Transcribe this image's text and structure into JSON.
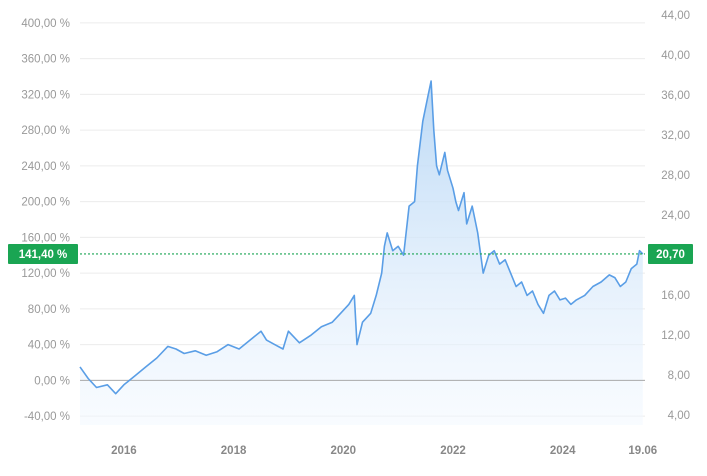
{
  "chart_data": {
    "type": "area",
    "title": "",
    "xlabel": "",
    "ylabel": "",
    "x_tick_labels": [
      "2016",
      "2018",
      "2020",
      "2022",
      "2024",
      "19.06"
    ],
    "x_tick_years": [
      2016,
      2018,
      2020,
      2022,
      2024,
      2025.46
    ],
    "xlim": [
      2015.2,
      2025.5
    ],
    "y_left": {
      "unit": "%",
      "ylim": [
        -50,
        420
      ],
      "ticks": [
        -40,
        0,
        40,
        80,
        120,
        160,
        200,
        240,
        280,
        320,
        360,
        400
      ],
      "tick_labels": [
        "-40,00 %",
        "0,00 %",
        "40,00 %",
        "80,00 %",
        "120,00 %",
        "160,00 %",
        "200,00 %",
        "240,00 %",
        "280,00 %",
        "320,00 %",
        "360,00 %",
        "400,00 %"
      ]
    },
    "y_right": {
      "ylim": [
        3.0,
        45.0
      ],
      "ticks": [
        4,
        8,
        12,
        16,
        20,
        24,
        28,
        32,
        36,
        40,
        44
      ],
      "tick_labels": [
        "4,00",
        "8,00",
        "12,00",
        "16,00",
        "20,00",
        "24,00",
        "28,00",
        "32,00",
        "36,00",
        "40,00",
        "44,00"
      ]
    },
    "baseline_value": 0,
    "current": {
      "percent": 141.4,
      "percent_label": "141,40 %",
      "price": 20.7,
      "price_label": "20,70"
    },
    "series": [
      {
        "x": [
          2015.2,
          2015.35,
          2015.5,
          2015.7,
          2015.85,
          2016.0,
          2016.2,
          2016.4,
          2016.6,
          2016.8,
          2016.95,
          2017.1,
          2017.3,
          2017.5,
          2017.7,
          2017.9,
          2018.1,
          2018.3,
          2018.5,
          2018.6,
          2018.75,
          2018.9,
          2019.0,
          2019.2,
          2019.4,
          2019.6,
          2019.8,
          2019.95,
          2020.1,
          2020.2,
          2020.25,
          2020.35,
          2020.5,
          2020.6,
          2020.7,
          2020.75,
          2020.8,
          2020.9,
          2021.0,
          2021.1,
          2021.2,
          2021.3,
          2021.35,
          2021.45,
          2021.55,
          2021.6,
          2021.65,
          2021.7,
          2021.75,
          2021.85,
          2021.9,
          2022.0,
          2022.05,
          2022.1,
          2022.2,
          2022.25,
          2022.35,
          2022.45,
          2022.55,
          2022.65,
          2022.75,
          2022.85,
          2022.95,
          2023.05,
          2023.15,
          2023.25,
          2023.35,
          2023.45,
          2023.55,
          2023.65,
          2023.75,
          2023.85,
          2023.95,
          2024.05,
          2024.15,
          2024.25,
          2024.4,
          2024.55,
          2024.7,
          2024.85,
          2024.95,
          2025.05,
          2025.15,
          2025.25,
          2025.35,
          2025.4,
          2025.46
        ],
        "values": [
          15,
          2,
          -8,
          -5,
          -15,
          -5,
          5,
          15,
          25,
          38,
          35,
          30,
          33,
          28,
          32,
          40,
          35,
          45,
          55,
          45,
          40,
          35,
          55,
          42,
          50,
          60,
          65,
          75,
          85,
          95,
          40,
          65,
          75,
          95,
          120,
          150,
          165,
          145,
          150,
          140,
          195,
          200,
          240,
          290,
          320,
          335,
          280,
          240,
          230,
          255,
          235,
          215,
          200,
          190,
          210,
          175,
          195,
          165,
          120,
          140,
          145,
          130,
          135,
          120,
          105,
          110,
          95,
          100,
          85,
          75,
          95,
          100,
          90,
          92,
          85,
          90,
          95,
          105,
          110,
          118,
          115,
          105,
          110,
          125,
          130,
          145,
          141.4
        ],
        "color": "#5a9ee6"
      }
    ],
    "colors": {
      "line": "#5a9ee6",
      "fill_top": "#b8d7f5",
      "fill_bottom": "#f2f8ff",
      "badge": "#1aa553",
      "grid": "#ececec",
      "baseline": "#aaaaaa"
    },
    "grid": true
  }
}
